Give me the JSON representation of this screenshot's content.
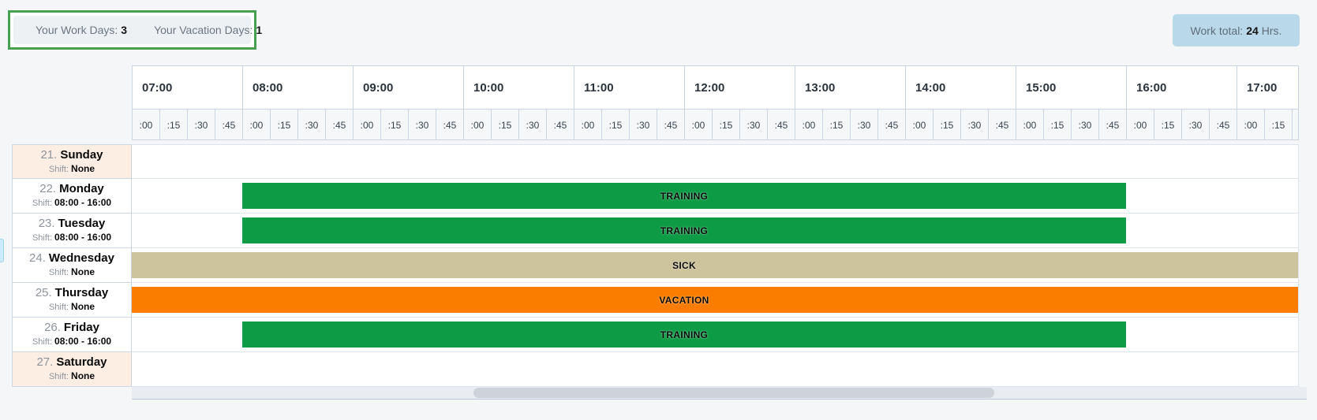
{
  "summary": {
    "work_days_label": "Your Work Days:",
    "work_days_value": "3",
    "vacation_days_label": "Your Vacation Days:",
    "vacation_days_value": "1",
    "work_total_label": "Work total:",
    "work_total_value": "24",
    "work_total_unit": "Hrs."
  },
  "timeline": {
    "hours": [
      "07:00",
      "08:00",
      "09:00",
      "10:00",
      "11:00",
      "12:00",
      "13:00",
      "14:00",
      "15:00",
      "16:00",
      "17:00"
    ],
    "quarters": [
      ":00",
      ":15",
      ":30",
      ":45"
    ]
  },
  "days": [
    {
      "number": "21.",
      "name": "Sunday",
      "shift_label": "Shift:",
      "shift": "None",
      "weekend": true,
      "bar": null
    },
    {
      "number": "22.",
      "name": "Monday",
      "shift_label": "Shift:",
      "shift": "08:00 - 16:00",
      "weekend": false,
      "bar": {
        "label": "TRAINING",
        "type": "training",
        "start": "08:00",
        "end": "16:00",
        "full": false
      }
    },
    {
      "number": "23.",
      "name": "Tuesday",
      "shift_label": "Shift:",
      "shift": "08:00 - 16:00",
      "weekend": false,
      "bar": {
        "label": "TRAINING",
        "type": "training",
        "start": "08:00",
        "end": "16:00",
        "full": false
      }
    },
    {
      "number": "24.",
      "name": "Wednesday",
      "shift_label": "Shift:",
      "shift": "None",
      "weekend": false,
      "bar": {
        "label": "SICK",
        "type": "sick",
        "full": true
      }
    },
    {
      "number": "25.",
      "name": "Thursday",
      "shift_label": "Shift:",
      "shift": "None",
      "weekend": false,
      "bar": {
        "label": "VACATION",
        "type": "vacation",
        "full": true
      }
    },
    {
      "number": "26.",
      "name": "Friday",
      "shift_label": "Shift:",
      "shift": "08:00 - 16:00",
      "weekend": false,
      "bar": {
        "label": "TRAINING",
        "type": "training",
        "start": "08:00",
        "end": "16:00",
        "full": false
      }
    },
    {
      "number": "27.",
      "name": "Saturday",
      "shift_label": "Shift:",
      "shift": "None",
      "weekend": true,
      "bar": null
    }
  ],
  "colors": {
    "training": "#0e9b45",
    "sick": "#cdc39c",
    "vacation": "#fb7d00",
    "weekend_row_bg": "#fdeee4",
    "accent_border": "#47a04f",
    "work_total_bg": "#b9d9ea",
    "page_bg": "#f4f6f8"
  }
}
